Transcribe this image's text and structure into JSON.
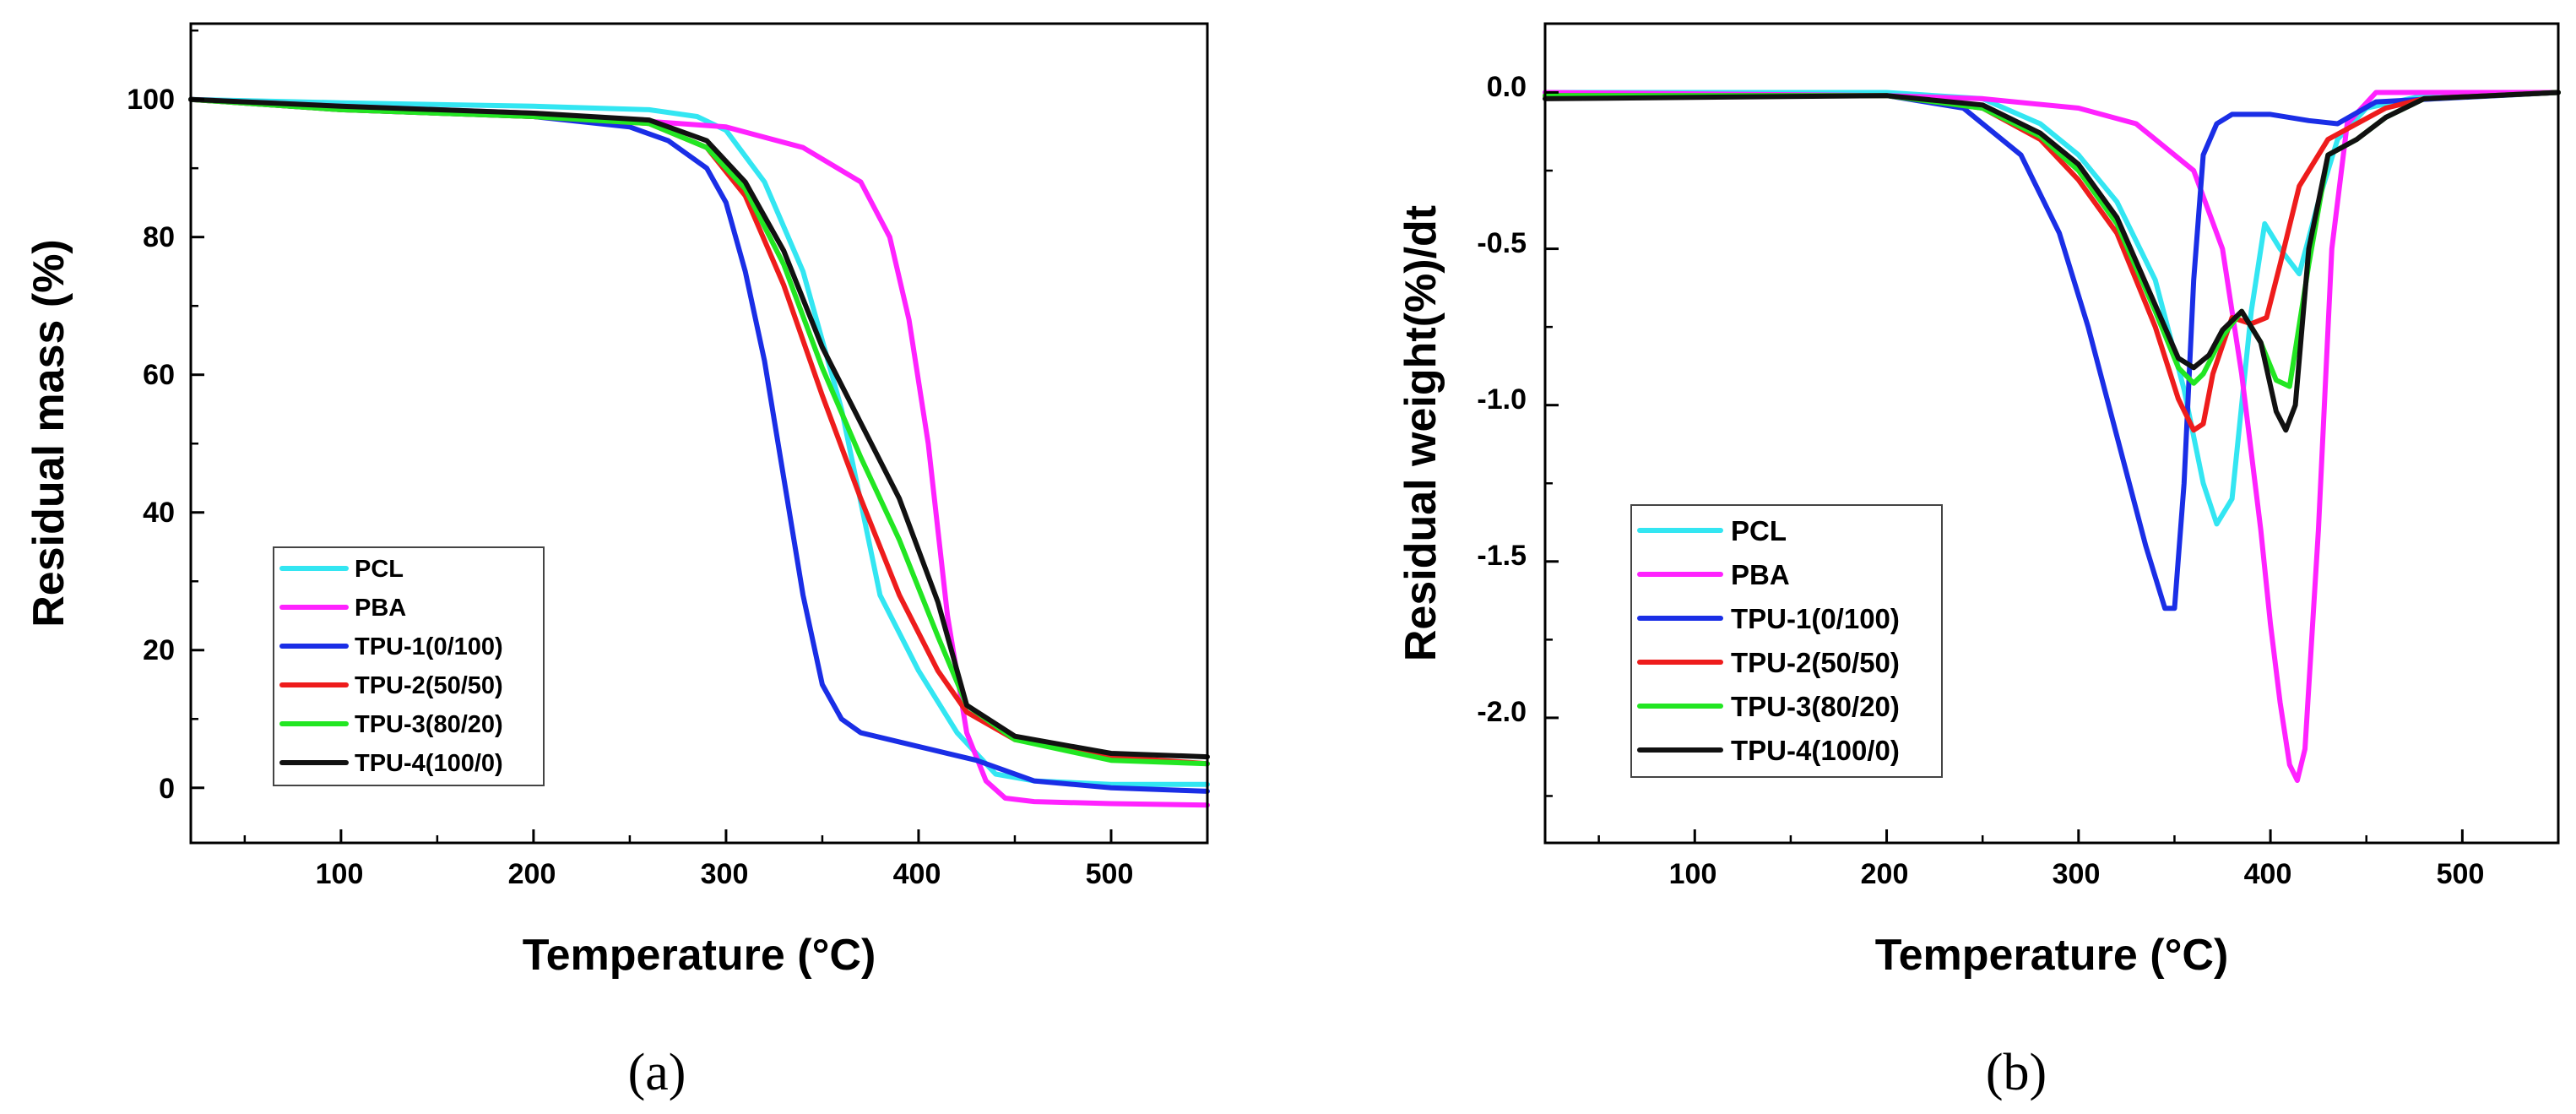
{
  "colors": {
    "PCL": "#33e6f2",
    "PBA": "#ff22ff",
    "TPU-1(0/100)": "#1a2ee6",
    "TPU-2(50/50)": "#ee1c1c",
    "TPU-3(80/20)": "#22e622",
    "TPU-4(100/0)": "#111111"
  },
  "chart_data": [
    {
      "type": "line",
      "caption": "(a)",
      "xlabel": "Temperature (°C)",
      "ylabel": "Residual mass (%)",
      "xlim": [
        22,
        550
      ],
      "ylim": [
        -8,
        111
      ],
      "xticks": [
        100,
        200,
        300,
        400,
        500
      ],
      "yticks": [
        0,
        20,
        40,
        60,
        80,
        100
      ],
      "ytick_labels": [
        "0",
        "20",
        "40",
        "60",
        "80",
        "100"
      ],
      "legend": "lower-left",
      "series": [
        {
          "name": "PCL",
          "x": [
            22,
            100,
            200,
            260,
            285,
            300,
            320,
            340,
            360,
            380,
            400,
            420,
            440,
            460,
            500,
            550
          ],
          "y": [
            100,
            99.5,
            99,
            98.5,
            97.5,
            95.5,
            88,
            75,
            55,
            28,
            17,
            8,
            2,
            1,
            0.5,
            0.5
          ]
        },
        {
          "name": "PBA",
          "x": [
            22,
            100,
            200,
            300,
            340,
            370,
            385,
            395,
            405,
            415,
            425,
            435,
            445,
            460,
            500,
            550
          ],
          "y": [
            100,
            99,
            98,
            96,
            93,
            88,
            80,
            68,
            50,
            25,
            8,
            1,
            -1.5,
            -2,
            -2.3,
            -2.5
          ]
        },
        {
          "name": "TPU-1(0/100)",
          "x": [
            22,
            100,
            200,
            250,
            270,
            290,
            300,
            310,
            320,
            330,
            340,
            350,
            360,
            370,
            400,
            430,
            460,
            500,
            550
          ],
          "y": [
            100,
            98.5,
            97.5,
            96,
            94,
            90,
            85,
            75,
            62,
            45,
            28,
            15,
            10,
            8,
            6,
            4,
            1,
            0,
            -0.5
          ]
        },
        {
          "name": "TPU-2(50/50)",
          "x": [
            22,
            100,
            200,
            260,
            290,
            310,
            330,
            350,
            370,
            390,
            410,
            425,
            450,
            500,
            550
          ],
          "y": [
            100,
            98.5,
            97.5,
            96.5,
            93,
            86,
            73,
            57,
            42,
            28,
            17,
            11,
            7,
            4.5,
            3.5
          ]
        },
        {
          "name": "TPU-3(80/20)",
          "x": [
            22,
            100,
            200,
            260,
            290,
            310,
            330,
            350,
            370,
            390,
            410,
            425,
            450,
            500,
            550
          ],
          "y": [
            100,
            98.5,
            97.5,
            96.5,
            93,
            87,
            76,
            61,
            48,
            36,
            22,
            12,
            7,
            4,
            3.5
          ]
        },
        {
          "name": "TPU-4(100/0)",
          "x": [
            22,
            100,
            200,
            260,
            290,
            310,
            330,
            350,
            370,
            390,
            410,
            425,
            450,
            500,
            550
          ],
          "y": [
            100,
            99,
            98,
            97,
            94,
            88,
            78,
            64,
            53,
            42,
            27,
            12,
            7.5,
            5,
            4.5
          ]
        }
      ]
    },
    {
      "type": "line",
      "caption": "(b)",
      "xlabel": "Temperature (°C)",
      "ylabel": "Residual weight(%)/dt",
      "xlim": [
        22,
        550
      ],
      "ylim": [
        -2.4,
        0.22
      ],
      "xticks": [
        100,
        200,
        300,
        400,
        500
      ],
      "yticks": [
        0,
        -0.5,
        -1.0,
        -1.5,
        -2.0
      ],
      "ytick_labels": [
        "0.0",
        "-0.5",
        "-1.0",
        "-1.5",
        "-2.0"
      ],
      "legend": "lower-left",
      "series": [
        {
          "name": "PCL",
          "x": [
            22,
            200,
            250,
            280,
            300,
            320,
            340,
            355,
            365,
            372,
            380,
            390,
            397,
            405,
            415,
            425,
            435,
            450,
            480,
            550
          ],
          "y": [
            0,
            0,
            -0.02,
            -0.1,
            -0.2,
            -0.35,
            -0.6,
            -0.95,
            -1.25,
            -1.38,
            -1.3,
            -0.7,
            -0.42,
            -0.5,
            -0.58,
            -0.35,
            -0.15,
            -0.05,
            -0.01,
            0
          ]
        },
        {
          "name": "PBA",
          "x": [
            22,
            200,
            250,
            300,
            330,
            360,
            375,
            385,
            395,
            400,
            405,
            410,
            414,
            418,
            425,
            432,
            440,
            455,
            550
          ],
          "y": [
            0,
            -0.01,
            -0.02,
            -0.05,
            -0.1,
            -0.25,
            -0.5,
            -0.9,
            -1.4,
            -1.7,
            -1.95,
            -2.15,
            -2.2,
            -2.1,
            -1.4,
            -0.5,
            -0.1,
            0,
            0
          ]
        },
        {
          "name": "TPU-1(0/100)",
          "x": [
            22,
            200,
            240,
            270,
            290,
            305,
            320,
            335,
            345,
            350,
            355,
            360,
            365,
            372,
            380,
            400,
            420,
            435,
            455,
            550
          ],
          "y": [
            -0.01,
            -0.01,
            -0.05,
            -0.2,
            -0.45,
            -0.75,
            -1.1,
            -1.45,
            -1.65,
            -1.65,
            -1.25,
            -0.6,
            -0.2,
            -0.1,
            -0.07,
            -0.07,
            -0.09,
            -0.1,
            -0.03,
            0
          ]
        },
        {
          "name": "TPU-2(50/50)",
          "x": [
            22,
            200,
            250,
            280,
            300,
            320,
            340,
            352,
            360,
            365,
            370,
            380,
            390,
            398,
            405,
            415,
            430,
            445,
            460,
            480,
            550
          ],
          "y": [
            -0.01,
            -0.01,
            -0.05,
            -0.15,
            -0.28,
            -0.45,
            -0.75,
            -0.98,
            -1.08,
            -1.06,
            -0.9,
            -0.72,
            -0.74,
            -0.72,
            -0.55,
            -0.3,
            -0.15,
            -0.1,
            -0.05,
            -0.02,
            0
          ]
        },
        {
          "name": "TPU-3(80/20)",
          "x": [
            22,
            200,
            250,
            280,
            300,
            320,
            340,
            352,
            360,
            365,
            375,
            385,
            395,
            403,
            410,
            420,
            430,
            445,
            460,
            480,
            550
          ],
          "y": [
            -0.01,
            -0.01,
            -0.05,
            -0.14,
            -0.25,
            -0.42,
            -0.7,
            -0.88,
            -0.93,
            -0.9,
            -0.78,
            -0.7,
            -0.8,
            -0.92,
            -0.94,
            -0.55,
            -0.2,
            -0.15,
            -0.08,
            -0.02,
            0
          ]
        },
        {
          "name": "TPU-4(100/0)",
          "x": [
            22,
            200,
            250,
            280,
            300,
            320,
            340,
            352,
            360,
            368,
            375,
            385,
            395,
            403,
            408,
            413,
            420,
            430,
            445,
            460,
            480,
            550
          ],
          "y": [
            -0.02,
            -0.01,
            -0.04,
            -0.13,
            -0.23,
            -0.4,
            -0.68,
            -0.85,
            -0.88,
            -0.84,
            -0.76,
            -0.7,
            -0.8,
            -1.02,
            -1.08,
            -1.0,
            -0.5,
            -0.2,
            -0.15,
            -0.08,
            -0.02,
            0
          ]
        }
      ]
    }
  ]
}
